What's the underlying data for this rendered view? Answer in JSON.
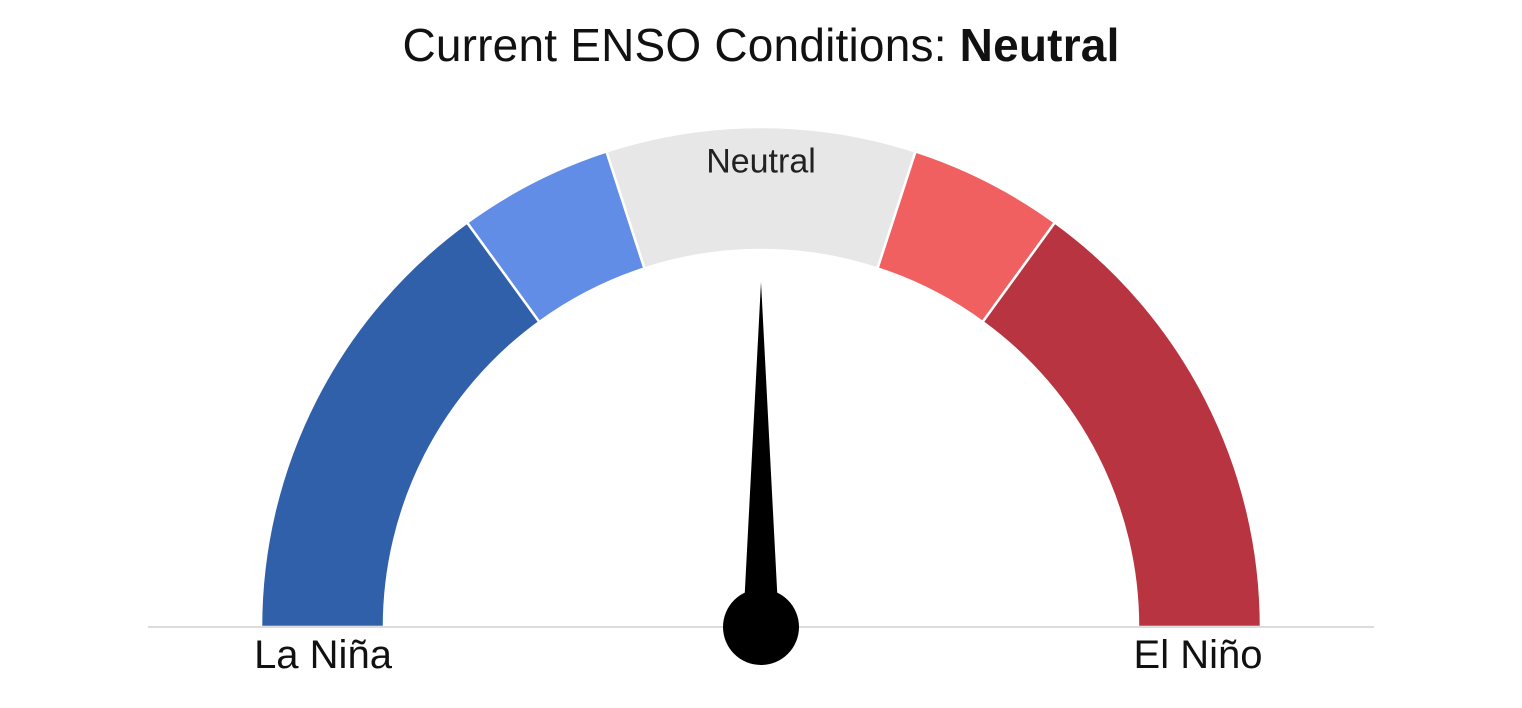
{
  "title": {
    "prefix": "Current ENSO Conditions:",
    "status": "Neutral"
  },
  "chart_data": {
    "type": "gauge",
    "segments": [
      {
        "label": "",
        "from": 0,
        "to": 0.3,
        "color": "#3160ab"
      },
      {
        "label": "",
        "from": 0.3,
        "to": 0.4,
        "color": "#628de6"
      },
      {
        "label": "Neutral",
        "from": 0.4,
        "to": 0.6,
        "color": "#e7e7e7"
      },
      {
        "label": "",
        "from": 0.6,
        "to": 0.7,
        "color": "#f06060"
      },
      {
        "label": "",
        "from": 0.7,
        "to": 1.0,
        "color": "#b83440"
      }
    ],
    "needle_value": 0.5,
    "left_label": "La Niña",
    "right_label": "El Niño"
  }
}
